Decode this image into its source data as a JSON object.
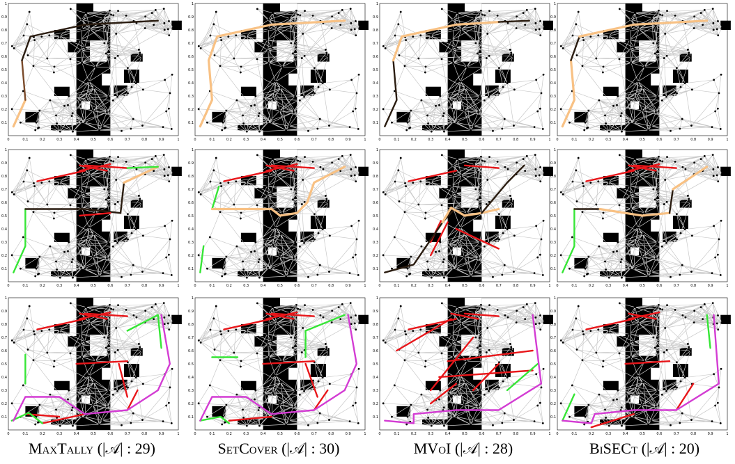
{
  "captions": [
    {
      "method": "MaxTally",
      "detail": "(|𝒜| : 29)"
    },
    {
      "method": "SetCover",
      "detail": "(|𝒜| : 30)"
    },
    {
      "method": "MVoI",
      "detail": "(|𝒜| : 28)"
    },
    {
      "method": "BiSECt",
      "detail": "(|𝒜| : 20)"
    }
  ],
  "xticks": [
    0,
    0.1,
    0.2,
    0.3,
    0.4,
    0.5,
    0.6,
    0.7,
    0.8,
    0.9,
    1
  ],
  "yticks": [
    0.1,
    0.2,
    0.3,
    0.4,
    0.5,
    0.6,
    0.7,
    0.8,
    0.9,
    1
  ]
}
